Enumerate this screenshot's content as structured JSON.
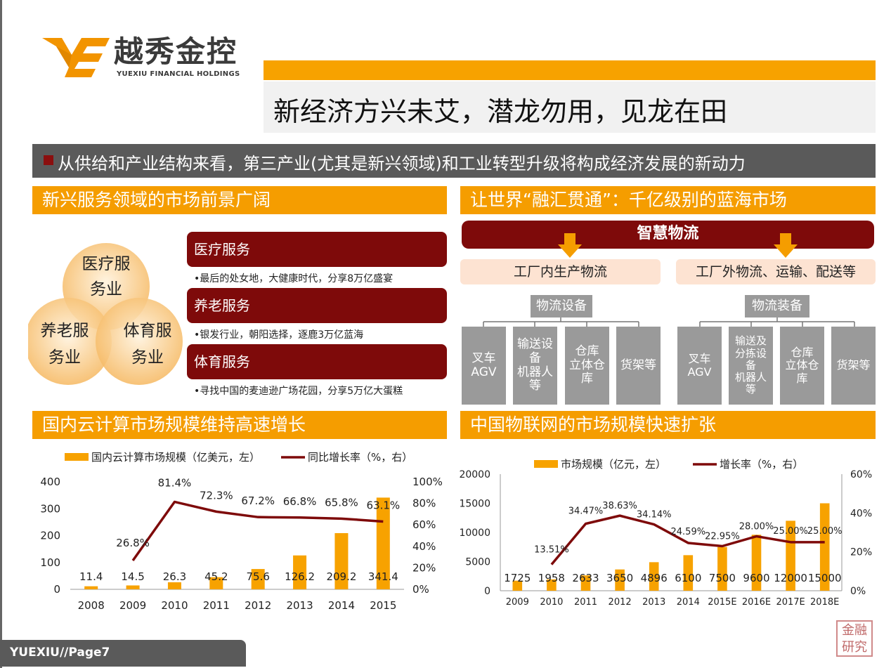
{
  "brand": {
    "name_cn": "越秀金控",
    "name_en": "YUEXIU FINANCIAL HOLDINGS",
    "logo_mark": "YE"
  },
  "header": {
    "title": "新经济方兴未艾，潜龙勿用，见龙在田"
  },
  "banner": {
    "text": "从供给和产业结构来看，第三产业(尤其是新兴领域)和工业转型升级将构成经济发展的新动力"
  },
  "left_top": {
    "title": "新兴服务领域的市场前景广阔",
    "venn": [
      "医疗服\n务业",
      "养老服\n务业",
      "体育服\n务业"
    ],
    "services": [
      {
        "name": "医疗服务",
        "desc": "•最后的处女地，大健康时代，分享8万亿盛宴"
      },
      {
        "name": "养老服务",
        "desc": "•银发行业，朝阳选择，逐鹿3万亿蓝海"
      },
      {
        "name": "体育服务",
        "desc": "•寻找中国的麦迪逊广场花园，分享5万亿大蛋糕"
      }
    ]
  },
  "right_top": {
    "title": "让世界“融汇贯通”：千亿级别的蓝海市场",
    "header": "智慧物流",
    "branches": [
      {
        "label": "工厂内生产物流",
        "category": "物流设备",
        "items": [
          "叉车\nAGV",
          "输送设\n备\n机器人\n等",
          "仓库\n立体仓\n库",
          "货架等"
        ]
      },
      {
        "label": "工厂外物流、运输、配送等",
        "category": "物流装备",
        "items": [
          "叉车\nAGV",
          "输送及\n分拣设\n备\n机器人\n等",
          "仓库\n立体仓\n库",
          "货架等"
        ]
      }
    ]
  },
  "footer": {
    "page": "YUEXIU//Page7",
    "stamp": "金融研究"
  },
  "chart_data": [
    {
      "type": "bar",
      "title": "国内云计算市场规模维持高速增长",
      "categories": [
        "2008",
        "2009",
        "2010",
        "2011",
        "2012",
        "2013",
        "2014",
        "2015"
      ],
      "series": [
        {
          "name": "国内云计算市场规模（亿美元，左）",
          "type": "bar",
          "axis": "left",
          "values": [
            11.4,
            14.5,
            26.3,
            45.2,
            75.6,
            126.2,
            209.2,
            341.4
          ],
          "labels": [
            "11.4",
            "14.5",
            "26.3",
            "45.2",
            "75.6",
            "126.2",
            "209.2",
            "341.4"
          ]
        },
        {
          "name": "同比增长率（%，右）",
          "type": "line",
          "axis": "right",
          "values": [
            null,
            26.8,
            81.4,
            72.3,
            67.2,
            66.8,
            65.8,
            63.1
          ],
          "labels": [
            "",
            "26.8%",
            "81.4%",
            "72.3%",
            "67.2%",
            "66.8%",
            "65.8%",
            "63.1%"
          ]
        }
      ],
      "ylim": [
        0,
        400
      ],
      "yticks": [
        "0",
        "100",
        "200",
        "300",
        "400"
      ],
      "y2lim": [
        0,
        100
      ],
      "y2ticks": [
        "0%",
        "20%",
        "40%",
        "60%",
        "80%",
        "100%"
      ],
      "legend": "top",
      "grid": false
    },
    {
      "type": "bar",
      "title": "中国物联网的市场规模快速扩张",
      "categories": [
        "2009",
        "2010",
        "2011",
        "2012",
        "2013",
        "2014",
        "2015E",
        "2016E",
        "2017E",
        "2018E"
      ],
      "series": [
        {
          "name": "市场规模（亿元，左）",
          "type": "bar",
          "axis": "left",
          "values": [
            1725,
            1958,
            2633,
            3650,
            4896,
            6100,
            7500,
            9600,
            12000,
            15000
          ],
          "labels": [
            "1725",
            "1958",
            "2633",
            "3650",
            "4896",
            "6100",
            "7500",
            "9600",
            "12000",
            "15000"
          ]
        },
        {
          "name": "增长率（%，右）",
          "type": "line",
          "axis": "right",
          "values": [
            null,
            13.51,
            34.47,
            38.63,
            34.14,
            24.59,
            22.95,
            28.0,
            25.0,
            25.0
          ],
          "labels": [
            "",
            "13.51%",
            "34.47%",
            "38.63%",
            "34.14%",
            "24.59%",
            "22.95%",
            "28.00%",
            "25.00%",
            "25.00%"
          ]
        }
      ],
      "ylim": [
        0,
        20000
      ],
      "yticks": [
        "0",
        "5000",
        "10000",
        "15000",
        "20000"
      ],
      "y2lim": [
        0,
        60
      ],
      "y2ticks": [
        "0%",
        "20%",
        "40%",
        "60%"
      ],
      "legend": "top",
      "grid": false
    }
  ],
  "colors": {
    "orange": "#f59d00",
    "dark_red": "#7e0a0a",
    "gray": "#9a9a9a",
    "pink": "#fde3d2",
    "bar": "#f7a200",
    "line": "#7e0a0a"
  }
}
